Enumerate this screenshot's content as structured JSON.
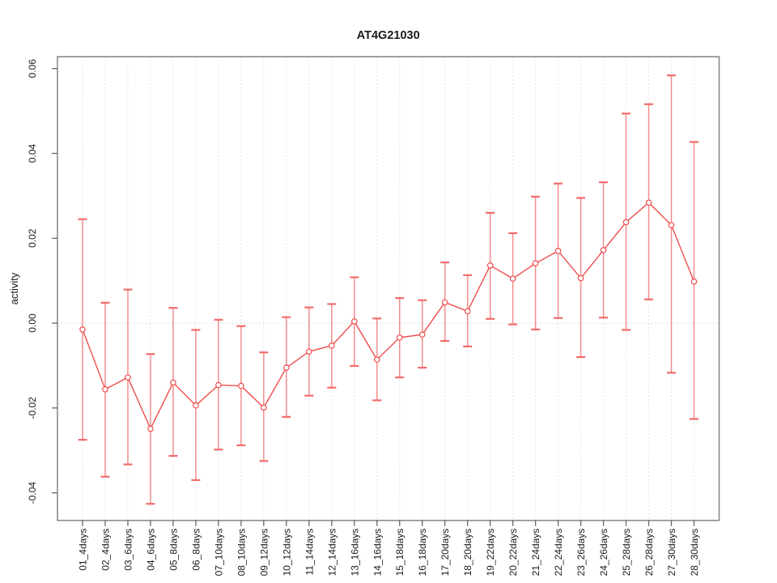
{
  "chart_data": {
    "type": "line",
    "title": "AT4G21030",
    "xlabel": "",
    "ylabel": "activity",
    "legend": "none",
    "grid": {
      "vertical_dotted_per_category": true,
      "horizontal_dotted_at_zero": true
    },
    "categories": [
      "01_4days",
      "02_4days",
      "03_6days",
      "04_6days",
      "05_8days",
      "06_8days",
      "07_10days",
      "08_10days",
      "09_12days",
      "10_12days",
      "11_14days",
      "12_14days",
      "13_16days",
      "14_16days",
      "15_18days",
      "16_18days",
      "17_20days",
      "18_20days",
      "19_22days",
      "20_22days",
      "21_24days",
      "22_24days",
      "23_26days",
      "24_26days",
      "25_28days",
      "26_28days",
      "27_30days",
      "28_30days"
    ],
    "series": [
      {
        "name": "activity",
        "values": [
          -0.0015,
          -0.0156,
          -0.0128,
          -0.0249,
          -0.014,
          -0.0194,
          -0.0146,
          -0.0148,
          -0.0199,
          -0.0105,
          -0.0067,
          -0.0053,
          0.0004,
          -0.0086,
          -0.0034,
          -0.0027,
          0.0049,
          0.0028,
          0.0136,
          0.0105,
          0.0141,
          0.017,
          0.0106,
          0.0172,
          0.0238,
          0.0284,
          0.0231,
          0.0098
        ],
        "error_upper": [
          0.0245,
          0.0048,
          0.0079,
          -0.0073,
          0.0036,
          -0.0016,
          0.0008,
          -0.0007,
          -0.0069,
          0.0014,
          0.0037,
          0.0045,
          0.0108,
          0.0011,
          0.0059,
          0.0054,
          0.0143,
          0.0113,
          0.026,
          0.0212,
          0.0298,
          0.0329,
          0.0295,
          0.0332,
          0.0494,
          0.0516,
          0.0584,
          0.0427
        ],
        "error_lower": [
          -0.0275,
          -0.0362,
          -0.0333,
          -0.0426,
          -0.0313,
          -0.037,
          -0.0298,
          -0.0288,
          -0.0325,
          -0.0221,
          -0.0171,
          -0.0152,
          -0.0101,
          -0.0182,
          -0.0128,
          -0.0105,
          -0.0042,
          -0.0055,
          0.001,
          -0.0003,
          -0.0015,
          0.0012,
          -0.008,
          0.0013,
          -0.0016,
          0.0056,
          -0.0117,
          -0.0226
        ]
      }
    ],
    "yticks": [
      -0.04,
      -0.02,
      0.0,
      0.02,
      0.04,
      0.06
    ],
    "ytick_labels": [
      "-0.04",
      "-0.02",
      "0.00",
      "0.02",
      "0.04",
      "0.06"
    ],
    "ylim": [
      -0.0465,
      0.0628
    ],
    "colors": {
      "point": "#ef4c4c",
      "line": "#ef4c4c",
      "error_bar": "#f58c8c",
      "error_cap": "#f26b6b",
      "grid": "#dcdcdc",
      "zero_line": "#d6d6d6",
      "axis_box": "#8a8a8a",
      "tick": "#666666",
      "text": "#1a1a1a"
    }
  }
}
